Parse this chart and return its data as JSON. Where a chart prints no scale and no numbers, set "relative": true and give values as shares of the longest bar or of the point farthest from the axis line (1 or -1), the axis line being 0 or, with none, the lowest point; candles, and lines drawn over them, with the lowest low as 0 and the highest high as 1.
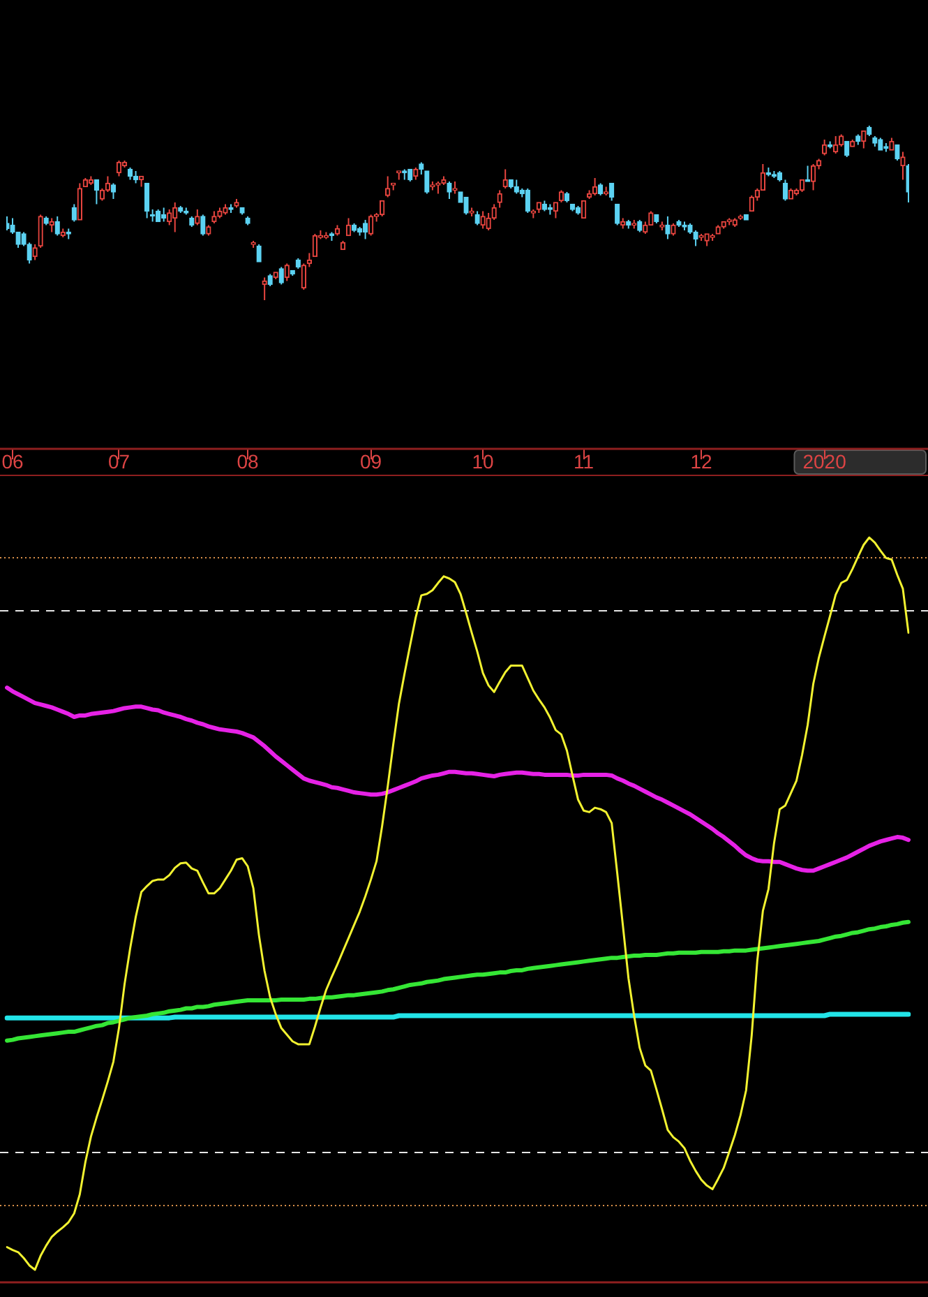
{
  "chart_data": [
    {
      "type": "candlestick",
      "relative": true,
      "tick_labels": "x",
      "categories": [
        null,
        "06",
        null,
        null,
        null,
        null,
        null,
        null,
        null,
        null,
        null,
        null,
        null,
        null,
        null,
        null,
        null,
        null,
        null,
        null,
        "07",
        null,
        null,
        null,
        null,
        null,
        null,
        null,
        null,
        null,
        null,
        null,
        null,
        null,
        null,
        null,
        null,
        null,
        null,
        null,
        null,
        null,
        null,
        "08",
        null,
        null,
        null,
        null,
        null,
        null,
        null,
        null,
        null,
        null,
        null,
        null,
        null,
        null,
        null,
        null,
        null,
        null,
        null,
        null,
        null,
        "09",
        null,
        null,
        null,
        null,
        null,
        null,
        null,
        null,
        null,
        null,
        null,
        null,
        null,
        null,
        null,
        null,
        null,
        null,
        null,
        "10",
        null,
        null,
        null,
        null,
        null,
        null,
        null,
        null,
        null,
        null,
        null,
        null,
        null,
        null,
        null,
        null,
        null,
        "11",
        null,
        null,
        null,
        null,
        null,
        null,
        null,
        null,
        null,
        null,
        null,
        null,
        null,
        null,
        null,
        null,
        null,
        null,
        null,
        null,
        "12",
        null,
        null,
        null,
        null,
        null,
        null,
        null,
        null,
        null,
        null,
        null,
        null,
        null,
        null,
        null,
        null,
        null,
        null,
        null,
        null,
        null,
        "2020",
        null,
        null,
        null,
        null,
        null,
        null,
        null,
        null,
        null,
        null,
        null,
        null,
        null,
        null,
        null
      ],
      "ohlc": [
        [
          0.44,
          0.48,
          0.4,
          0.41
        ],
        [
          0.43,
          0.47,
          0.38,
          0.39
        ],
        [
          0.39,
          0.39,
          0.3,
          0.32
        ],
        [
          0.38,
          0.39,
          0.31,
          0.32
        ],
        [
          0.32,
          0.33,
          0.21,
          0.23
        ],
        [
          0.25,
          0.32,
          0.23,
          0.3
        ],
        [
          0.31,
          0.49,
          0.3,
          0.48
        ],
        [
          0.47,
          0.48,
          0.43,
          0.44
        ],
        [
          0.43,
          0.47,
          0.39,
          0.45
        ],
        [
          0.45,
          0.48,
          0.37,
          0.38
        ],
        [
          0.37,
          0.41,
          0.36,
          0.39
        ],
        [
          0.39,
          0.41,
          0.35,
          0.38
        ],
        [
          0.53,
          0.55,
          0.45,
          0.46
        ],
        [
          0.46,
          0.67,
          0.46,
          0.64
        ],
        [
          0.65,
          0.7,
          0.65,
          0.69
        ],
        [
          0.67,
          0.71,
          0.66,
          0.69
        ],
        [
          0.69,
          0.69,
          0.55,
          0.63
        ],
        [
          0.58,
          0.64,
          0.57,
          0.63
        ],
        [
          0.63,
          0.71,
          0.62,
          0.67
        ],
        [
          0.66,
          0.67,
          0.58,
          0.62
        ],
        [
          0.73,
          0.8,
          0.71,
          0.79
        ],
        [
          0.77,
          0.8,
          0.76,
          0.79
        ],
        [
          0.75,
          0.76,
          0.69,
          0.71
        ],
        [
          0.71,
          0.74,
          0.67,
          0.69
        ],
        [
          0.69,
          0.71,
          0.65,
          0.71
        ],
        [
          0.67,
          0.67,
          0.47,
          0.51
        ],
        [
          0.49,
          0.52,
          0.45,
          0.49
        ],
        [
          0.51,
          0.52,
          0.45,
          0.45
        ],
        [
          0.49,
          0.53,
          0.45,
          0.47
        ],
        [
          0.45,
          0.52,
          0.43,
          0.5
        ],
        [
          0.47,
          0.56,
          0.39,
          0.53
        ],
        [
          0.53,
          0.54,
          0.5,
          0.51
        ],
        [
          0.51,
          0.53,
          0.49,
          0.5
        ],
        [
          0.47,
          0.48,
          0.42,
          0.43
        ],
        [
          0.44,
          0.52,
          0.43,
          0.48
        ],
        [
          0.48,
          0.49,
          0.37,
          0.38
        ],
        [
          0.38,
          0.43,
          0.37,
          0.42
        ],
        [
          0.45,
          0.51,
          0.44,
          0.48
        ],
        [
          0.48,
          0.53,
          0.47,
          0.51
        ],
        [
          0.5,
          0.55,
          0.49,
          0.53
        ],
        [
          0.53,
          0.55,
          0.5,
          0.52
        ],
        [
          0.54,
          0.58,
          0.53,
          0.56
        ],
        [
          0.53,
          0.53,
          0.49,
          0.5
        ],
        [
          0.47,
          0.48,
          0.43,
          0.44
        ],
        [
          0.32,
          0.34,
          0.3,
          0.33
        ],
        [
          0.31,
          0.32,
          0.22,
          0.22
        ],
        [
          0.09,
          0.13,
          0,
          0.11
        ],
        [
          0.14,
          0.15,
          0.08,
          0.09
        ],
        [
          0.13,
          0.16,
          0.12,
          0.16
        ],
        [
          0.18,
          0.19,
          0.09,
          0.1
        ],
        [
          0.13,
          0.21,
          0.11,
          0.2
        ],
        [
          0.17,
          0.17,
          0.14,
          0.15
        ],
        [
          0.23,
          0.24,
          0.18,
          0.19
        ],
        [
          0.07,
          0.21,
          0.06,
          0.2
        ],
        [
          0.21,
          0.27,
          0.19,
          0.23
        ],
        [
          0.25,
          0.38,
          0.25,
          0.37
        ],
        [
          0.36,
          0.4,
          0.35,
          0.37
        ],
        [
          0.36,
          0.39,
          0.35,
          0.37
        ],
        [
          0.38,
          0.39,
          0.34,
          0.37
        ],
        [
          0.38,
          0.43,
          0.37,
          0.41
        ],
        [
          0.29,
          0.34,
          0.29,
          0.33
        ],
        [
          0.37,
          0.47,
          0.37,
          0.43
        ],
        [
          0.43,
          0.44,
          0.39,
          0.4
        ],
        [
          0.41,
          0.42,
          0.37,
          0.39
        ],
        [
          0.44,
          0.46,
          0.35,
          0.39
        ],
        [
          0.38,
          0.49,
          0.37,
          0.48
        ],
        [
          0.48,
          0.5,
          0.45,
          0.49
        ],
        [
          0.49,
          0.57,
          0.48,
          0.57
        ],
        [
          0.6,
          0.71,
          0.59,
          0.64
        ],
        [
          0.66,
          0.67,
          0.63,
          0.67
        ],
        [
          0.73,
          0.74,
          0.69,
          0.74
        ],
        [
          0.74,
          0.75,
          0.69,
          0.73
        ],
        [
          0.75,
          0.75,
          0.68,
          0.69
        ],
        [
          0.71,
          0.76,
          0.69,
          0.75
        ],
        [
          0.78,
          0.79,
          0.72,
          0.75
        ],
        [
          0.74,
          0.74,
          0.61,
          0.62
        ],
        [
          0.65,
          0.68,
          0.63,
          0.66
        ],
        [
          0.66,
          0.68,
          0.61,
          0.67
        ],
        [
          0.67,
          0.71,
          0.66,
          0.69
        ],
        [
          0.67,
          0.68,
          0.58,
          0.62
        ],
        [
          0.63,
          0.68,
          0.61,
          0.64
        ],
        [
          0.62,
          0.62,
          0.56,
          0.56
        ],
        [
          0.59,
          0.59,
          0.49,
          0.5
        ],
        [
          0.5,
          0.53,
          0.48,
          0.51
        ],
        [
          0.49,
          0.51,
          0.43,
          0.44
        ],
        [
          0.43,
          0.51,
          0.41,
          0.48
        ],
        [
          0.41,
          0.5,
          0.4,
          0.47
        ],
        [
          0.47,
          0.55,
          0.46,
          0.53
        ],
        [
          0.56,
          0.63,
          0.53,
          0.61
        ],
        [
          0.65,
          0.75,
          0.64,
          0.69
        ],
        [
          0.69,
          0.69,
          0.64,
          0.65
        ],
        [
          0.65,
          0.69,
          0.61,
          0.62
        ],
        [
          0.63,
          0.64,
          0.59,
          0.61
        ],
        [
          0.63,
          0.64,
          0.5,
          0.51
        ],
        [
          0.5,
          0.52,
          0.47,
          0.51
        ],
        [
          0.52,
          0.56,
          0.5,
          0.56
        ],
        [
          0.55,
          0.57,
          0.51,
          0.52
        ],
        [
          0.53,
          0.55,
          0.49,
          0.52
        ],
        [
          0.51,
          0.56,
          0.47,
          0.56
        ],
        [
          0.57,
          0.63,
          0.56,
          0.62
        ],
        [
          0.61,
          0.62,
          0.56,
          0.57
        ],
        [
          0.55,
          0.55,
          0.51,
          0.52
        ],
        [
          0.53,
          0.54,
          0.49,
          0.5
        ],
        [
          0.47,
          0.57,
          0.47,
          0.57
        ],
        [
          0.59,
          0.63,
          0.58,
          0.61
        ],
        [
          0.61,
          0.7,
          0.6,
          0.65
        ],
        [
          0.66,
          0.67,
          0.6,
          0.61
        ],
        [
          0.61,
          0.65,
          0.6,
          0.62
        ],
        [
          0.67,
          0.67,
          0.57,
          0.59
        ],
        [
          0.55,
          0.55,
          0.43,
          0.44
        ],
        [
          0.43,
          0.47,
          0.41,
          0.45
        ],
        [
          0.45,
          0.46,
          0.41,
          0.43
        ],
        [
          0.43,
          0.46,
          0.41,
          0.44
        ],
        [
          0.45,
          0.46,
          0.39,
          0.4
        ],
        [
          0.39,
          0.45,
          0.38,
          0.43
        ],
        [
          0.43,
          0.51,
          0.43,
          0.5
        ],
        [
          0.49,
          0.49,
          0.44,
          0.45
        ],
        [
          0.42,
          0.45,
          0.4,
          0.43
        ],
        [
          0.43,
          0.48,
          0.35,
          0.38
        ],
        [
          0.38,
          0.44,
          0.37,
          0.43
        ],
        [
          0.45,
          0.46,
          0.42,
          0.43
        ],
        [
          0.43,
          0.45,
          0.4,
          0.42
        ],
        [
          0.43,
          0.44,
          0.38,
          0.39
        ],
        [
          0.39,
          0.4,
          0.31,
          0.35
        ],
        [
          0.36,
          0.38,
          0.34,
          0.37
        ],
        [
          0.34,
          0.38,
          0.31,
          0.38
        ],
        [
          0.36,
          0.38,
          0.34,
          0.37
        ],
        [
          0.38,
          0.43,
          0.38,
          0.42
        ],
        [
          0.42,
          0.45,
          0.41,
          0.45
        ],
        [
          0.45,
          0.47,
          0.43,
          0.46
        ],
        [
          0.43,
          0.47,
          0.42,
          0.46
        ],
        [
          0.47,
          0.49,
          0.46,
          0.48
        ],
        [
          0.49,
          0.49,
          0.46,
          0.46
        ],
        [
          0.51,
          0.6,
          0.51,
          0.59
        ],
        [
          0.59,
          0.64,
          0.57,
          0.63
        ],
        [
          0.63,
          0.78,
          0.63,
          0.73
        ],
        [
          0.73,
          0.76,
          0.71,
          0.72
        ],
        [
          0.72,
          0.74,
          0.7,
          0.71
        ],
        [
          0.73,
          0.74,
          0.68,
          0.69
        ],
        [
          0.67,
          0.69,
          0.57,
          0.58
        ],
        [
          0.58,
          0.64,
          0.58,
          0.63
        ],
        [
          0.61,
          0.64,
          0.6,
          0.63
        ],
        [
          0.63,
          0.69,
          0.62,
          0.69
        ],
        [
          0.69,
          0.77,
          0.68,
          0.68
        ],
        [
          0.68,
          0.78,
          0.63,
          0.77
        ],
        [
          0.77,
          0.81,
          0.75,
          0.8
        ],
        [
          0.84,
          0.92,
          0.83,
          0.89
        ],
        [
          0.89,
          0.91,
          0.87,
          0.88
        ],
        [
          0.85,
          0.94,
          0.84,
          0.89
        ],
        [
          0.89,
          0.95,
          0.88,
          0.94
        ],
        [
          0.91,
          0.91,
          0.82,
          0.83
        ],
        [
          0.88,
          0.92,
          0.88,
          0.91
        ],
        [
          0.94,
          0.95,
          0.89,
          0.91
        ],
        [
          0.91,
          0.97,
          0.87,
          0.97
        ],
        [
          0.99,
          1,
          0.94,
          0.95
        ],
        [
          0.93,
          0.94,
          0.88,
          0.9
        ],
        [
          0.92,
          0.93,
          0.86,
          0.86
        ],
        [
          0.88,
          0.9,
          0.85,
          0.87
        ],
        [
          0.86,
          0.93,
          0.86,
          0.91
        ],
        [
          0.89,
          0.89,
          0.8,
          0.81
        ],
        [
          0.77,
          0.85,
          0.69,
          0.82
        ],
        [
          0.77,
          0.78,
          0.56,
          0.62
        ]
      ],
      "colors": [
        "#5cd2f2",
        "#5cd2f2",
        "#5cd2f2",
        "#5cd2f2",
        "#5cd2f2",
        "#e8453f",
        "#e8453f",
        "#5cd2f2",
        "#e8453f",
        "#5cd2f2",
        "#e8453f",
        "#5cd2f2",
        "#5cd2f2",
        "#e8453f",
        "#e8453f",
        "#e8453f",
        "#5cd2f2",
        "#e8453f",
        "#e8453f",
        "#5cd2f2",
        "#e8453f",
        "#e8453f",
        "#5cd2f2",
        "#5cd2f2",
        "#e8453f",
        "#5cd2f2",
        "#5cd2f2",
        "#5cd2f2",
        "#5cd2f2",
        "#e8453f",
        "#e8453f",
        "#5cd2f2",
        "#5cd2f2",
        "#5cd2f2",
        "#e8453f",
        "#5cd2f2",
        "#e8453f",
        "#e8453f",
        "#e8453f",
        "#e8453f",
        "#5cd2f2",
        "#e8453f",
        "#5cd2f2",
        "#5cd2f2",
        "#e8453f",
        "#5cd2f2",
        "#e8453f",
        "#5cd2f2",
        "#e8453f",
        "#5cd2f2",
        "#e8453f",
        "#5cd2f2",
        "#5cd2f2",
        "#e8453f",
        "#e8453f",
        "#e8453f",
        "#e8453f",
        "#e8453f",
        "#5cd2f2",
        "#e8453f",
        "#e8453f",
        "#e8453f",
        "#5cd2f2",
        "#5cd2f2",
        "#5cd2f2",
        "#e8453f",
        "#e8453f",
        "#e8453f",
        "#e8453f",
        "#e8453f",
        "#e8453f",
        "#5cd2f2",
        "#5cd2f2",
        "#e8453f",
        "#5cd2f2",
        "#5cd2f2",
        "#e8453f",
        "#e8453f",
        "#e8453f",
        "#5cd2f2",
        "#e8453f",
        "#5cd2f2",
        "#5cd2f2",
        "#e8453f",
        "#5cd2f2",
        "#e8453f",
        "#e8453f",
        "#e8453f",
        "#e8453f",
        "#e8453f",
        "#5cd2f2",
        "#5cd2f2",
        "#5cd2f2",
        "#5cd2f2",
        "#e8453f",
        "#e8453f",
        "#5cd2f2",
        "#5cd2f2",
        "#e8453f",
        "#e8453f",
        "#5cd2f2",
        "#5cd2f2",
        "#5cd2f2",
        "#e8453f",
        "#e8453f",
        "#e8453f",
        "#5cd2f2",
        "#e8453f",
        "#5cd2f2",
        "#5cd2f2",
        "#e8453f",
        "#5cd2f2",
        "#e8453f",
        "#5cd2f2",
        "#e8453f",
        "#e8453f",
        "#5cd2f2",
        "#e8453f",
        "#5cd2f2",
        "#e8453f",
        "#5cd2f2",
        "#5cd2f2",
        "#5cd2f2",
        "#5cd2f2",
        "#e8453f",
        "#e8453f",
        "#e8453f",
        "#e8453f",
        "#e8453f",
        "#e8453f",
        "#e8453f",
        "#e8453f",
        "#5cd2f2",
        "#e8453f",
        "#e8453f",
        "#e8453f",
        "#5cd2f2",
        "#5cd2f2",
        "#5cd2f2",
        "#5cd2f2",
        "#e8453f",
        "#e8453f",
        "#e8453f",
        "#5cd2f2",
        "#e8453f",
        "#e8453f",
        "#e8453f",
        "#5cd2f2",
        "#e8453f",
        "#e8453f",
        "#5cd2f2",
        "#e8453f",
        "#5cd2f2",
        "#e8453f",
        "#5cd2f2",
        "#5cd2f2",
        "#5cd2f2",
        "#5cd2f2",
        "#e8453f",
        "#5cd2f2",
        "#e8453f",
        "#5cd2f2"
      ]
    },
    {
      "type": "line",
      "relative": true,
      "tick_labels": false,
      "categories": [
        null,
        "06",
        null,
        null,
        null,
        null,
        null,
        null,
        null,
        null,
        null,
        null,
        null,
        null,
        null,
        null,
        null,
        null,
        null,
        null,
        "07",
        null,
        null,
        null,
        null,
        null,
        null,
        null,
        null,
        null,
        null,
        null,
        null,
        null,
        null,
        null,
        null,
        null,
        null,
        null,
        null,
        null,
        null,
        "08",
        null,
        null,
        null,
        null,
        null,
        null,
        null,
        null,
        null,
        null,
        null,
        null,
        null,
        null,
        null,
        null,
        null,
        null,
        null,
        null,
        null,
        "09",
        null,
        null,
        null,
        null,
        null,
        null,
        null,
        null,
        null,
        null,
        null,
        null,
        null,
        null,
        null,
        null,
        null,
        null,
        null,
        "10",
        null,
        null,
        null,
        null,
        null,
        null,
        null,
        null,
        null,
        null,
        null,
        null,
        null,
        null,
        null,
        null,
        null,
        "11",
        null,
        null,
        null,
        null,
        null,
        null,
        null,
        null,
        null,
        null,
        null,
        null,
        null,
        null,
        null,
        null,
        null,
        null,
        null,
        null,
        "12",
        null,
        null,
        null,
        null,
        null,
        null,
        null,
        null,
        null,
        null,
        null,
        null,
        null,
        null,
        null,
        null,
        null,
        null,
        null,
        null,
        null,
        "2020",
        null,
        null,
        null,
        null,
        null,
        null,
        null,
        null,
        null,
        null,
        null,
        null,
        null,
        null,
        null
      ],
      "series": [
        {
          "color": "#f2f230",
          "values": [
            0.031,
            0.027,
            0.024,
            0.016,
            0.006,
            0,
            0.019,
            0.033,
            0.045,
            0.052,
            0.058,
            0.065,
            0.077,
            0.103,
            0.147,
            0.182,
            0.208,
            0.232,
            0.257,
            0.284,
            0.33,
            0.39,
            0.439,
            0.482,
            0.516,
            0.524,
            0.531,
            0.533,
            0.533,
            0.539,
            0.549,
            0.555,
            0.556,
            0.548,
            0.545,
            0.529,
            0.514,
            0.514,
            0.521,
            0.533,
            0.545,
            0.56,
            0.562,
            0.551,
            0.521,
            0.457,
            0.408,
            0.372,
            0.349,
            0.33,
            0.321,
            0.312,
            0.308,
            0.308,
            0.308,
            0.332,
            0.358,
            0.382,
            0.4,
            0.417,
            0.435,
            0.453,
            0.471,
            0.489,
            0.51,
            0.533,
            0.558,
            0.606,
            0.66,
            0.718,
            0.773,
            0.814,
            0.853,
            0.891,
            0.921,
            0.923,
            0.928,
            0.938,
            0.947,
            0.944,
            0.939,
            0.923,
            0.897,
            0.87,
            0.844,
            0.815,
            0.798,
            0.789,
            0.803,
            0.816,
            0.825,
            0.825,
            0.825,
            0.808,
            0.791,
            0.779,
            0.768,
            0.754,
            0.737,
            0.731,
            0.709,
            0.675,
            0.642,
            0.627,
            0.625,
            0.631,
            0.629,
            0.625,
            0.61,
            0.541,
            0.47,
            0.398,
            0.347,
            0.303,
            0.279,
            0.272,
            0.246,
            0.219,
            0.191,
            0.181,
            0.175,
            0.166,
            0.149,
            0.135,
            0.123,
            0.115,
            0.11,
            0.124,
            0.139,
            0.161,
            0.184,
            0.211,
            0.245,
            0.32,
            0.422,
            0.49,
            0.52,
            0.583,
            0.629,
            0.634,
            0.651,
            0.668,
            0.703,
            0.744,
            0.8,
            0.836,
            0.865,
            0.893,
            0.922,
            0.938,
            0.942,
            0.957,
            0.974,
            0.99,
            1,
            0.993,
            0.982,
            0.972,
            0.97,
            0.949,
            0.93,
            0.87
          ]
        },
        {
          "color": "#e622e6",
          "values": [
            0.795,
            0.79,
            0.786,
            0.782,
            0.778,
            0.774,
            0.772,
            0.77,
            0.768,
            0.765,
            0.762,
            0.759,
            0.755,
            0.757,
            0.757,
            0.759,
            0.76,
            0.761,
            0.762,
            0.763,
            0.765,
            0.767,
            0.768,
            0.769,
            0.769,
            0.767,
            0.765,
            0.764,
            0.761,
            0.759,
            0.757,
            0.755,
            0.752,
            0.75,
            0.747,
            0.745,
            0.742,
            0.74,
            0.738,
            0.737,
            0.736,
            0.735,
            0.733,
            0.73,
            0.727,
            0.721,
            0.715,
            0.708,
            0.701,
            0.695,
            0.689,
            0.683,
            0.677,
            0.671,
            0.668,
            0.666,
            0.664,
            0.662,
            0.659,
            0.658,
            0.656,
            0.654,
            0.652,
            0.651,
            0.65,
            0.649,
            0.649,
            0.65,
            0.652,
            0.655,
            0.658,
            0.661,
            0.664,
            0.667,
            0.671,
            0.673,
            0.675,
            0.676,
            0.678,
            0.68,
            0.68,
            0.679,
            0.678,
            0.678,
            0.677,
            0.676,
            0.675,
            0.674,
            0.676,
            0.677,
            0.678,
            0.679,
            0.679,
            0.678,
            0.677,
            0.677,
            0.676,
            0.676,
            0.676,
            0.676,
            0.676,
            0.675,
            0.675,
            0.676,
            0.676,
            0.676,
            0.676,
            0.676,
            0.675,
            0.671,
            0.668,
            0.664,
            0.661,
            0.657,
            0.653,
            0.649,
            0.645,
            0.642,
            0.638,
            0.634,
            0.63,
            0.626,
            0.622,
            0.617,
            0.612,
            0.607,
            0.602,
            0.596,
            0.591,
            0.585,
            0.579,
            0.572,
            0.566,
            0.562,
            0.559,
            0.558,
            0.558,
            0.557,
            0.557,
            0.554,
            0.551,
            0.548,
            0.546,
            0.545,
            0.545,
            0.548,
            0.551,
            0.554,
            0.557,
            0.56,
            0.563,
            0.567,
            0.571,
            0.575,
            0.579,
            0.582,
            0.585,
            0.587,
            0.589,
            0.591,
            0.59,
            0.587
          ]
        },
        {
          "color": "#35e635",
          "values": [
            0.313,
            0.314,
            0.316,
            0.317,
            0.318,
            0.319,
            0.32,
            0.321,
            0.322,
            0.323,
            0.324,
            0.325,
            0.325,
            0.327,
            0.329,
            0.331,
            0.333,
            0.334,
            0.337,
            0.338,
            0.34,
            0.342,
            0.344,
            0.345,
            0.346,
            0.347,
            0.349,
            0.35,
            0.351,
            0.353,
            0.354,
            0.355,
            0.357,
            0.357,
            0.359,
            0.359,
            0.36,
            0.362,
            0.363,
            0.364,
            0.365,
            0.366,
            0.367,
            0.368,
            0.368,
            0.368,
            0.368,
            0.368,
            0.368,
            0.369,
            0.369,
            0.369,
            0.369,
            0.369,
            0.37,
            0.37,
            0.371,
            0.372,
            0.372,
            0.373,
            0.374,
            0.375,
            0.375,
            0.376,
            0.377,
            0.378,
            0.379,
            0.38,
            0.382,
            0.383,
            0.385,
            0.387,
            0.389,
            0.39,
            0.391,
            0.393,
            0.394,
            0.395,
            0.397,
            0.398,
            0.399,
            0.4,
            0.401,
            0.402,
            0.403,
            0.403,
            0.404,
            0.405,
            0.406,
            0.406,
            0.408,
            0.409,
            0.409,
            0.411,
            0.412,
            0.413,
            0.414,
            0.415,
            0.416,
            0.417,
            0.418,
            0.419,
            0.42,
            0.421,
            0.422,
            0.423,
            0.424,
            0.425,
            0.426,
            0.426,
            0.427,
            0.428,
            0.429,
            0.429,
            0.43,
            0.43,
            0.43,
            0.431,
            0.432,
            0.432,
            0.433,
            0.433,
            0.433,
            0.433,
            0.434,
            0.434,
            0.434,
            0.434,
            0.435,
            0.435,
            0.436,
            0.436,
            0.436,
            0.437,
            0.438,
            0.439,
            0.44,
            0.441,
            0.442,
            0.443,
            0.444,
            0.445,
            0.446,
            0.447,
            0.448,
            0.449,
            0.451,
            0.453,
            0.455,
            0.456,
            0.458,
            0.46,
            0.461,
            0.463,
            0.465,
            0.466,
            0.468,
            0.469,
            0.471,
            0.472,
            0.474,
            0.475
          ]
        },
        {
          "color": "#22e4e8",
          "values": [
            0.344,
            0.344,
            0.344,
            0.344,
            0.344,
            0.344,
            0.344,
            0.344,
            0.344,
            0.344,
            0.344,
            0.344,
            0.344,
            0.344,
            0.344,
            0.344,
            0.344,
            0.344,
            0.344,
            0.344,
            0.344,
            0.344,
            0.344,
            0.344,
            0.344,
            0.344,
            0.344,
            0.344,
            0.344,
            0.344,
            0.345,
            0.345,
            0.345,
            0.345,
            0.345,
            0.345,
            0.345,
            0.345,
            0.345,
            0.345,
            0.345,
            0.345,
            0.345,
            0.345,
            0.345,
            0.345,
            0.345,
            0.345,
            0.345,
            0.345,
            0.345,
            0.345,
            0.345,
            0.345,
            0.345,
            0.345,
            0.345,
            0.345,
            0.345,
            0.345,
            0.345,
            0.345,
            0.345,
            0.345,
            0.345,
            0.345,
            0.345,
            0.345,
            0.345,
            0.345,
            0.347,
            0.347,
            0.347,
            0.347,
            0.347,
            0.347,
            0.347,
            0.347,
            0.347,
            0.347,
            0.347,
            0.347,
            0.347,
            0.347,
            0.347,
            0.347,
            0.347,
            0.347,
            0.347,
            0.347,
            0.347,
            0.347,
            0.347,
            0.347,
            0.347,
            0.347,
            0.347,
            0.347,
            0.347,
            0.347,
            0.347,
            0.347,
            0.347,
            0.347,
            0.347,
            0.347,
            0.347,
            0.347,
            0.347,
            0.347,
            0.347,
            0.347,
            0.347,
            0.347,
            0.347,
            0.347,
            0.347,
            0.347,
            0.347,
            0.347,
            0.347,
            0.347,
            0.347,
            0.347,
            0.347,
            0.347,
            0.347,
            0.347,
            0.347,
            0.347,
            0.347,
            0.347,
            0.347,
            0.347,
            0.347,
            0.347,
            0.347,
            0.347,
            0.347,
            0.347,
            0.347,
            0.347,
            0.347,
            0.347,
            0.347,
            0.347,
            0.347,
            0.349,
            0.349,
            0.349,
            0.349,
            0.349,
            0.349,
            0.349,
            0.349,
            0.349,
            0.349,
            0.349,
            0.349,
            0.349,
            0.349,
            0.349
          ]
        }
      ],
      "ref_lines": [
        {
          "axis": "y",
          "value": 0.974,
          "color": "#d9904a",
          "line_style": "dotted"
        },
        {
          "axis": "y",
          "value": 0.9,
          "color": "#e6e6e6",
          "line_style": "dashed"
        },
        {
          "axis": "y",
          "value": 0.161,
          "color": "#e6e6e6",
          "line_style": "dashed"
        },
        {
          "axis": "y",
          "value": 0.088,
          "color": "#d9904a",
          "line_style": "dotted"
        }
      ]
    }
  ]
}
